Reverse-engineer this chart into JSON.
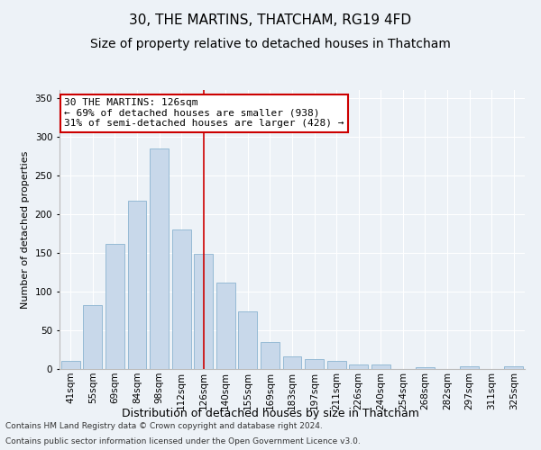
{
  "title": "30, THE MARTINS, THATCHAM, RG19 4FD",
  "subtitle": "Size of property relative to detached houses in Thatcham",
  "xlabel": "Distribution of detached houses by size in Thatcham",
  "ylabel": "Number of detached properties",
  "categories": [
    "41sqm",
    "55sqm",
    "69sqm",
    "84sqm",
    "98sqm",
    "112sqm",
    "126sqm",
    "140sqm",
    "155sqm",
    "169sqm",
    "183sqm",
    "197sqm",
    "211sqm",
    "226sqm",
    "240sqm",
    "254sqm",
    "268sqm",
    "282sqm",
    "297sqm",
    "311sqm",
    "325sqm"
  ],
  "values": [
    10,
    83,
    162,
    217,
    284,
    180,
    149,
    112,
    74,
    35,
    16,
    13,
    11,
    6,
    6,
    0,
    2,
    0,
    4,
    0,
    4
  ],
  "bar_color": "#c8d8ea",
  "bar_edge_color": "#8ab4d0",
  "highlight_index": 6,
  "highlight_line_color": "#cc0000",
  "ylim": [
    0,
    360
  ],
  "yticks": [
    0,
    50,
    100,
    150,
    200,
    250,
    300,
    350
  ],
  "annotation_text": "30 THE MARTINS: 126sqm\n← 69% of detached houses are smaller (938)\n31% of semi-detached houses are larger (428) →",
  "annotation_box_facecolor": "#ffffff",
  "annotation_box_edgecolor": "#cc0000",
  "background_color": "#edf2f7",
  "grid_color": "#ffffff",
  "footer_line1": "Contains HM Land Registry data © Crown copyright and database right 2024.",
  "footer_line2": "Contains public sector information licensed under the Open Government Licence v3.0.",
  "title_fontsize": 11,
  "subtitle_fontsize": 10,
  "xlabel_fontsize": 9,
  "ylabel_fontsize": 8,
  "tick_fontsize": 7.5,
  "annotation_fontsize": 8,
  "footer_fontsize": 6.5
}
